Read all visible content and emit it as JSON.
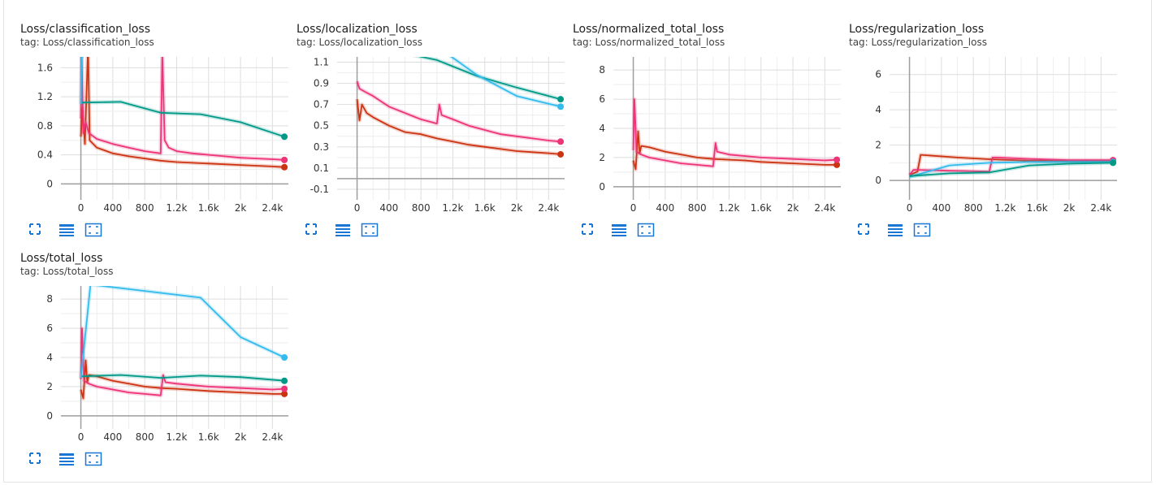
{
  "colors": {
    "orange": "#cc3311",
    "pink": "#ee3377",
    "cyan": "#33bbee",
    "teal": "#009988",
    "grid": "#dddddd",
    "axis": "#9e9e9e",
    "toolbar": "#1976d2"
  },
  "toolbar_icons": [
    "fit-domain-icon",
    "show-data-icon",
    "expand-chart-icon"
  ],
  "chart_data": [
    {
      "type": "line",
      "title": "Loss/classification_loss",
      "tag": "tag: Loss/classification_loss",
      "xlim": [
        -250,
        2600
      ],
      "ylim": [
        -0.22,
        1.75
      ],
      "xticks": [
        0,
        400,
        800,
        1200,
        1600,
        2000,
        2400
      ],
      "xtick_labels": [
        "0",
        "400",
        "800",
        "1.2k",
        "1.6k",
        "2k",
        "2.4k"
      ],
      "yticks": [
        0,
        0.4,
        0.8,
        1.2,
        1.6
      ],
      "ytick_labels": [
        "0",
        "0.4",
        "0.8",
        "1.2",
        "1.6"
      ],
      "series": [
        {
          "color": "orange",
          "x": [
            0,
            20,
            50,
            90,
            110,
            200,
            400,
            600,
            800,
            1000,
            1200,
            1600,
            2000,
            2400,
            2550
          ],
          "y": [
            0.65,
            1.05,
            0.55,
            1.9,
            0.6,
            0.5,
            0.42,
            0.38,
            0.35,
            0.32,
            0.3,
            0.28,
            0.26,
            0.24,
            0.23
          ],
          "end_marker": true
        },
        {
          "color": "pink",
          "x": [
            0,
            10,
            30,
            60,
            100,
            200,
            400,
            600,
            800,
            1000,
            1020,
            1050,
            1100,
            1200,
            1400,
            1600,
            1800,
            2000,
            2200,
            2400,
            2550
          ],
          "y": [
            0.9,
            1.8,
            0.7,
            0.85,
            0.7,
            0.62,
            0.55,
            0.5,
            0.45,
            0.42,
            1.8,
            0.6,
            0.5,
            0.45,
            0.42,
            0.4,
            0.38,
            0.36,
            0.35,
            0.34,
            0.33
          ],
          "end_marker": true
        },
        {
          "color": "teal",
          "x": [
            0,
            500,
            1000,
            1500,
            2000,
            2550
          ],
          "y": [
            1.12,
            1.13,
            0.98,
            0.96,
            0.85,
            0.65
          ],
          "end_marker": true
        },
        {
          "color": "cyan",
          "x": [
            0,
            10,
            30
          ],
          "y": [
            1.1,
            1.75,
            1.75
          ],
          "end_marker": false
        }
      ]
    },
    {
      "type": "line",
      "title": "Loss/localization_loss",
      "tag": "tag: Loss/localization_loss",
      "xlim": [
        -250,
        2600
      ],
      "ylim": [
        -0.2,
        1.15
      ],
      "xticks": [
        0,
        400,
        800,
        1200,
        1600,
        2000,
        2400
      ],
      "xtick_labels": [
        "0",
        "400",
        "800",
        "1.2k",
        "1.6k",
        "2k",
        "2.4k"
      ],
      "yticks": [
        -0.1,
        0.1,
        0.3,
        0.5,
        0.7,
        0.9,
        1.1
      ],
      "ytick_labels": [
        "-0.1",
        "0.1",
        "0.3",
        "0.5",
        "0.7",
        "0.9",
        "1.1"
      ],
      "series": [
        {
          "color": "orange",
          "x": [
            0,
            30,
            60,
            120,
            200,
            400,
            600,
            800,
            1000,
            1200,
            1400,
            1600,
            1800,
            2000,
            2200,
            2400,
            2550
          ],
          "y": [
            0.75,
            0.55,
            0.7,
            0.62,
            0.58,
            0.5,
            0.44,
            0.42,
            0.38,
            0.35,
            0.32,
            0.3,
            0.28,
            0.26,
            0.25,
            0.24,
            0.23
          ],
          "end_marker": true
        },
        {
          "color": "pink",
          "x": [
            0,
            30,
            100,
            200,
            400,
            600,
            800,
            1000,
            1030,
            1060,
            1200,
            1400,
            1600,
            1800,
            2000,
            2200,
            2400,
            2550
          ],
          "y": [
            0.92,
            0.85,
            0.82,
            0.78,
            0.68,
            0.62,
            0.56,
            0.52,
            0.7,
            0.6,
            0.56,
            0.5,
            0.46,
            0.42,
            0.4,
            0.38,
            0.36,
            0.35
          ],
          "end_marker": true
        },
        {
          "color": "teal",
          "x": [
            0,
            500,
            1000,
            1500,
            2000,
            2550
          ],
          "y": [
            1.3,
            1.2,
            1.12,
            0.97,
            0.86,
            0.75
          ],
          "end_marker": true
        },
        {
          "color": "cyan",
          "x": [
            0,
            1000,
            1500,
            2000,
            2550
          ],
          "y": [
            1.4,
            1.25,
            0.98,
            0.78,
            0.68
          ],
          "end_marker": true
        }
      ]
    },
    {
      "type": "line",
      "title": "Loss/normalized_total_loss",
      "tag": "tag: Loss/normalized_total_loss",
      "xlim": [
        -250,
        2600
      ],
      "ylim": [
        -0.9,
        8.9
      ],
      "xticks": [
        0,
        400,
        800,
        1200,
        1600,
        2000,
        2400
      ],
      "xtick_labels": [
        "0",
        "400",
        "800",
        "1.2k",
        "1.6k",
        "2k",
        "2.4k"
      ],
      "yticks": [
        0,
        2,
        4,
        6,
        8
      ],
      "ytick_labels": [
        "0",
        "2",
        "4",
        "6",
        "8"
      ],
      "series": [
        {
          "color": "orange",
          "x": [
            0,
            30,
            60,
            80,
            100,
            200,
            400,
            600,
            800,
            1000,
            1200,
            1400,
            1600,
            2000,
            2400,
            2550
          ],
          "y": [
            1.8,
            1.2,
            3.8,
            2.3,
            2.8,
            2.7,
            2.4,
            2.2,
            2.0,
            1.9,
            1.85,
            1.8,
            1.7,
            1.6,
            1.5,
            1.5
          ],
          "end_marker": true
        },
        {
          "color": "pink",
          "x": [
            0,
            15,
            40,
            100,
            200,
            400,
            600,
            800,
            1000,
            1030,
            1050,
            1200,
            1600,
            2000,
            2400,
            2550
          ],
          "y": [
            2.5,
            6.0,
            2.4,
            2.2,
            2.0,
            1.8,
            1.6,
            1.5,
            1.4,
            3.0,
            2.4,
            2.2,
            2.0,
            1.9,
            1.8,
            1.85
          ],
          "end_marker": true
        }
      ]
    },
    {
      "type": "line",
      "title": "Loss/regularization_loss",
      "tag": "tag: Loss/regularization_loss",
      "xlim": [
        -250,
        2600
      ],
      "ylim": [
        -1.1,
        7.0
      ],
      "xticks": [
        0,
        400,
        800,
        1200,
        1600,
        2000,
        2400
      ],
      "xtick_labels": [
        "0",
        "400",
        "800",
        "1.2k",
        "1.6k",
        "2k",
        "2.4k"
      ],
      "yticks": [
        0,
        2,
        4,
        6
      ],
      "ytick_labels": [
        "0",
        "2",
        "4",
        "6"
      ],
      "series": [
        {
          "color": "orange",
          "x": [
            0,
            100,
            140,
            600,
            1000,
            1500,
            2000,
            2550
          ],
          "y": [
            0.3,
            0.5,
            1.45,
            1.3,
            1.2,
            1.12,
            1.1,
            1.1
          ],
          "end_marker": true
        },
        {
          "color": "pink",
          "x": [
            0,
            50,
            100,
            500,
            1000,
            1040,
            1100,
            1500,
            2000,
            2550
          ],
          "y": [
            0.3,
            0.6,
            0.6,
            0.55,
            0.5,
            1.3,
            1.3,
            1.22,
            1.15,
            1.15
          ],
          "end_marker": true
        },
        {
          "color": "cyan",
          "x": [
            0,
            500,
            1000,
            1500,
            2000,
            2550
          ],
          "y": [
            0.2,
            0.85,
            1.0,
            1.05,
            1.05,
            1.05
          ],
          "end_marker": true
        },
        {
          "color": "teal",
          "x": [
            0,
            500,
            1000,
            1500,
            2000,
            2550
          ],
          "y": [
            0.25,
            0.4,
            0.45,
            0.85,
            0.95,
            1.0
          ],
          "end_marker": true
        }
      ]
    },
    {
      "type": "line",
      "title": "Loss/total_loss",
      "tag": "tag: Loss/total_loss",
      "xlim": [
        -250,
        2600
      ],
      "ylim": [
        -0.9,
        8.9
      ],
      "xticks": [
        0,
        400,
        800,
        1200,
        1600,
        2000,
        2400
      ],
      "xtick_labels": [
        "0",
        "400",
        "800",
        "1.2k",
        "1.6k",
        "2k",
        "2.4k"
      ],
      "yticks": [
        0,
        2,
        4,
        6,
        8
      ],
      "ytick_labels": [
        "0",
        "2",
        "4",
        "6",
        "8"
      ],
      "series": [
        {
          "color": "orange",
          "x": [
            0,
            30,
            60,
            80,
            100,
            200,
            400,
            600,
            800,
            1000,
            1200,
            1600,
            2000,
            2400,
            2550
          ],
          "y": [
            1.8,
            1.2,
            3.8,
            2.3,
            2.8,
            2.7,
            2.4,
            2.2,
            2.0,
            1.9,
            1.85,
            1.7,
            1.6,
            1.5,
            1.5
          ],
          "end_marker": true
        },
        {
          "color": "pink",
          "x": [
            0,
            15,
            40,
            100,
            200,
            400,
            600,
            800,
            1000,
            1030,
            1060,
            1200,
            1600,
            2000,
            2400,
            2550
          ],
          "y": [
            2.5,
            6.0,
            2.4,
            2.2,
            2.0,
            1.8,
            1.6,
            1.5,
            1.4,
            2.8,
            2.3,
            2.2,
            2.0,
            1.9,
            1.8,
            1.85
          ],
          "end_marker": true
        },
        {
          "color": "teal",
          "x": [
            0,
            500,
            1000,
            1500,
            2000,
            2550
          ],
          "y": [
            2.7,
            2.8,
            2.6,
            2.75,
            2.65,
            2.4
          ],
          "end_marker": true
        },
        {
          "color": "cyan",
          "x": [
            0,
            120,
            1500,
            2000,
            2550
          ],
          "y": [
            2.6,
            9.0,
            8.1,
            5.4,
            4.0
          ],
          "end_marker": true
        }
      ]
    }
  ]
}
